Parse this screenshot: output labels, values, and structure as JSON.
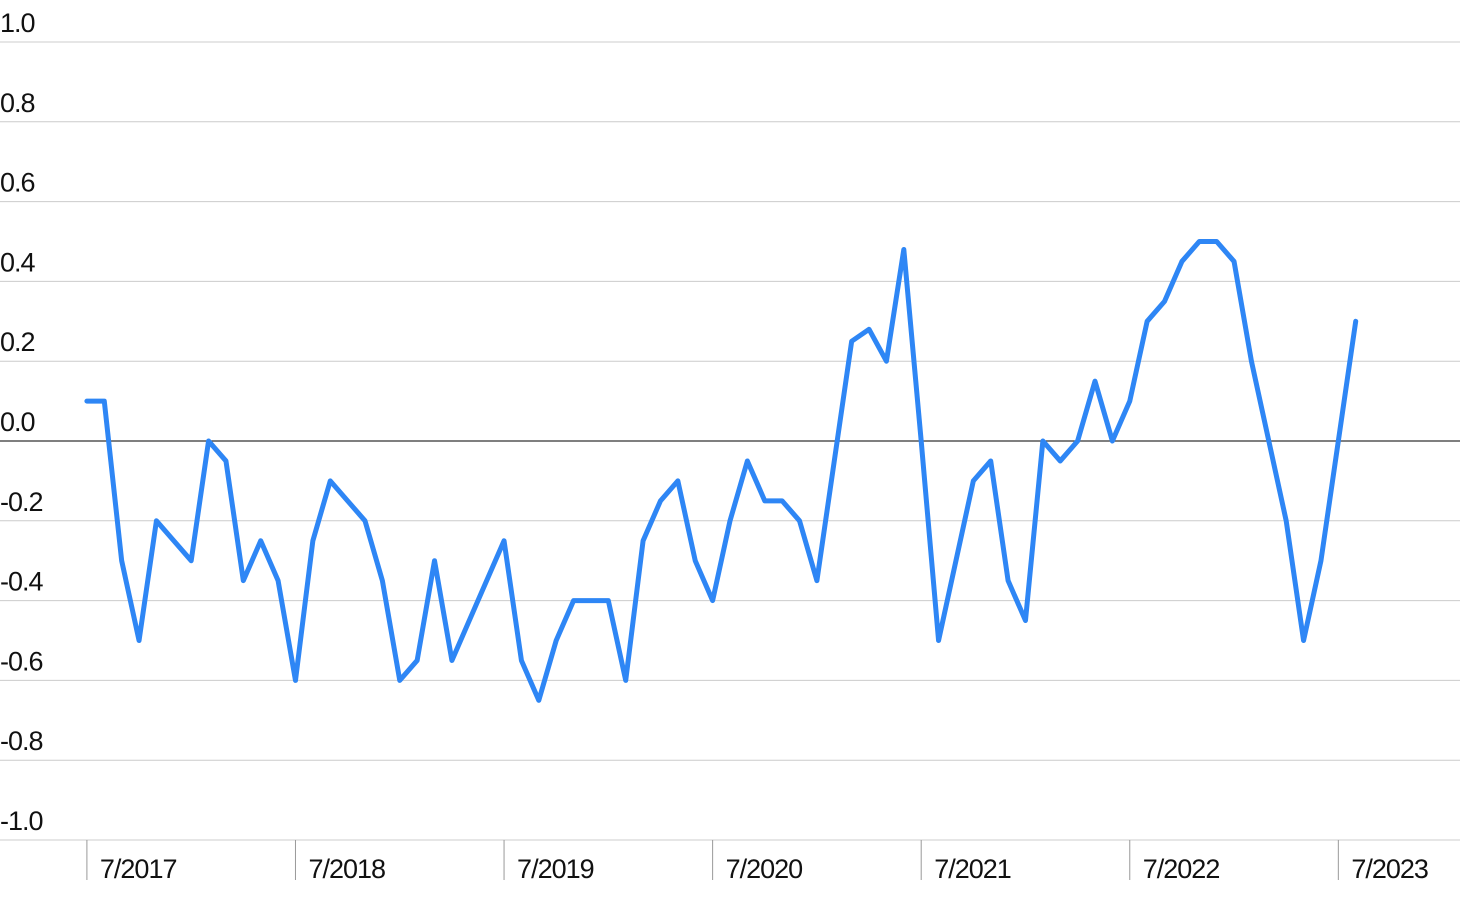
{
  "chart_data": {
    "type": "line",
    "x": [
      "2017-07",
      "2017-08",
      "2017-09",
      "2017-10",
      "2017-11",
      "2017-12",
      "2018-01",
      "2018-02",
      "2018-03",
      "2018-04",
      "2018-05",
      "2018-06",
      "2018-07",
      "2018-08",
      "2018-09",
      "2018-10",
      "2018-11",
      "2018-12",
      "2019-01",
      "2019-02",
      "2019-03",
      "2019-04",
      "2019-05",
      "2019-06",
      "2019-07",
      "2019-08",
      "2019-09",
      "2019-10",
      "2019-11",
      "2019-12",
      "2020-01",
      "2020-02",
      "2020-03",
      "2020-04",
      "2020-05",
      "2020-06",
      "2020-07",
      "2020-08",
      "2020-09",
      "2020-10",
      "2020-11",
      "2020-12",
      "2021-01",
      "2021-02",
      "2021-03",
      "2021-04",
      "2021-05",
      "2021-06",
      "2021-07",
      "2021-08",
      "2021-09",
      "2021-10",
      "2021-11",
      "2021-12",
      "2022-01",
      "2022-02",
      "2022-03",
      "2022-04",
      "2022-05",
      "2022-06",
      "2022-07",
      "2022-08",
      "2022-09",
      "2022-10",
      "2022-11",
      "2022-12",
      "2023-01",
      "2023-02",
      "2023-03",
      "2023-04",
      "2023-05",
      "2023-06",
      "2023-07",
      "2023-08"
    ],
    "series": [
      {
        "color": "#2e86f5",
        "values": [
          0.1,
          0.1,
          -0.3,
          -0.5,
          -0.2,
          -0.25,
          -0.3,
          0.0,
          -0.05,
          -0.35,
          -0.25,
          -0.35,
          -0.6,
          -0.25,
          -0.1,
          -0.15,
          -0.2,
          -0.35,
          -0.6,
          -0.55,
          -0.3,
          -0.55,
          -0.45,
          -0.35,
          -0.25,
          -0.55,
          -0.65,
          -0.5,
          -0.4,
          -0.4,
          -0.4,
          -0.6,
          -0.25,
          -0.15,
          -0.1,
          -0.3,
          -0.4,
          -0.2,
          -0.05,
          -0.15,
          -0.15,
          -0.2,
          -0.35,
          -0.05,
          0.25,
          0.28,
          0.2,
          0.48,
          0.0,
          -0.5,
          -0.3,
          -0.1,
          -0.05,
          -0.35,
          -0.45,
          0.0,
          -0.05,
          0.0,
          0.15,
          0.0,
          0.1,
          0.3,
          0.35,
          0.45,
          0.5,
          0.5,
          0.45,
          0.2,
          0.0,
          -0.2,
          -0.5,
          -0.3,
          0.0,
          0.3
        ]
      }
    ],
    "xlim": [
      "2017-02",
      "2024-02"
    ],
    "xticks": [
      {
        "value": "2017-07",
        "label": "7/2017"
      },
      {
        "value": "2018-07",
        "label": "7/2018"
      },
      {
        "value": "2019-07",
        "label": "7/2019"
      },
      {
        "value": "2020-07",
        "label": "7/2020"
      },
      {
        "value": "2021-07",
        "label": "7/2021"
      },
      {
        "value": "2022-07",
        "label": "7/2022"
      },
      {
        "value": "2023-07",
        "label": "7/2023"
      }
    ],
    "ylim": [
      -1,
      1
    ],
    "yticks": [
      {
        "value": 1,
        "label": "1.0"
      },
      0.8,
      0.6,
      0.4,
      0.2,
      {
        "value": 0,
        "label": "0.0"
      },
      -0.2,
      -0.4,
      -0.6,
      -0.8,
      {
        "value": -1,
        "label": "-1.0"
      }
    ],
    "grid": true
  }
}
